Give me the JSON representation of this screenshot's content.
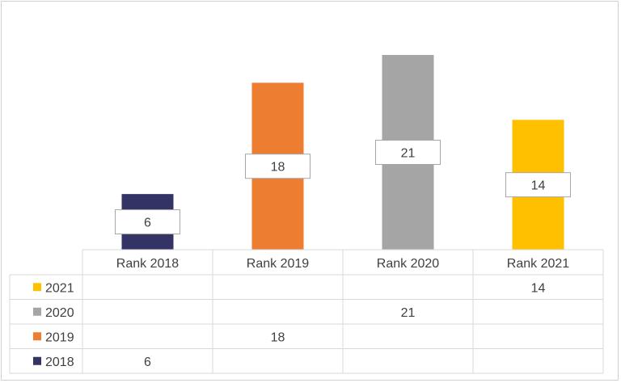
{
  "chart_data": {
    "type": "bar",
    "categories": [
      "Rank 2018",
      "Rank 2019",
      "Rank 2020",
      "Rank 2021"
    ],
    "series": [
      {
        "name": "2021",
        "color": "#FFC000",
        "values": [
          null,
          null,
          null,
          14
        ]
      },
      {
        "name": "2020",
        "color": "#A5A5A5",
        "values": [
          null,
          null,
          21,
          null
        ]
      },
      {
        "name": "2019",
        "color": "#ED7D31",
        "values": [
          null,
          18,
          null,
          null
        ]
      },
      {
        "name": "2018",
        "color": "#333366",
        "values": [
          6,
          null,
          null,
          null
        ]
      }
    ],
    "ylim": [
      0,
      21
    ],
    "grid": false,
    "data_table": true,
    "legend": "data-table-left"
  }
}
